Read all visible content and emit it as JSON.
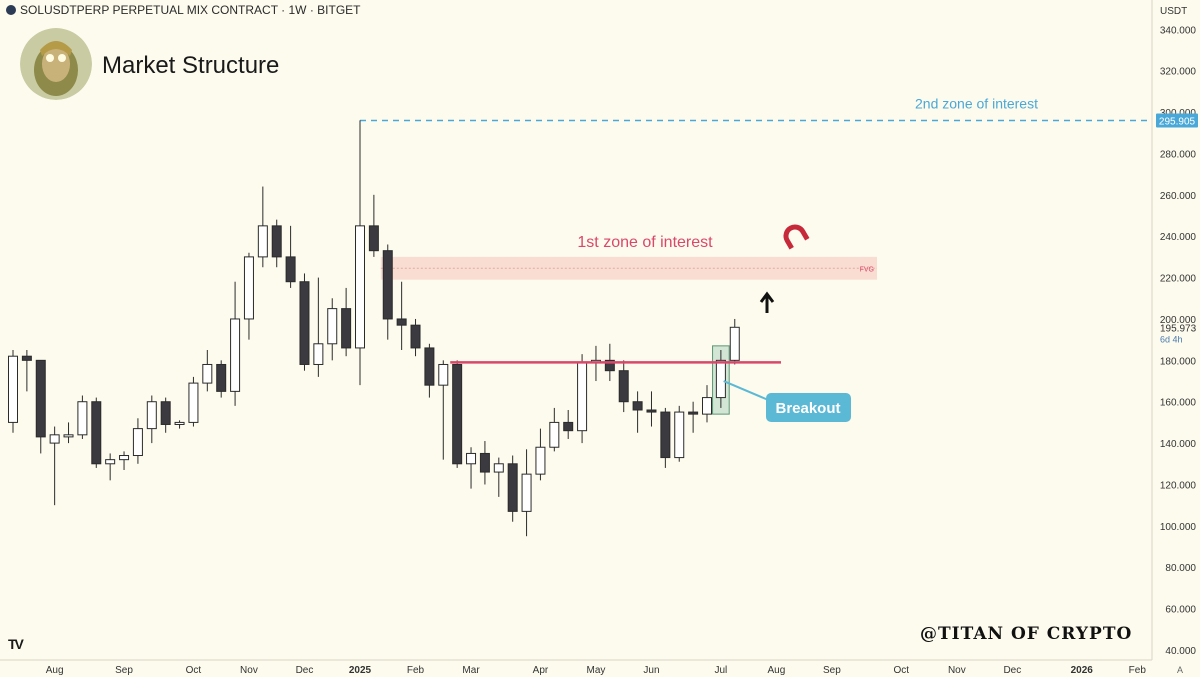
{
  "header": {
    "symbol_line": "SOLUSDTPERP PERPETUAL MIX CONTRACT · 1W · BITGET"
  },
  "title": "Market Structure",
  "watermark": "@TITAN OF CRYPTO",
  "tv_logo": "TV",
  "price_scale": {
    "currency": "USDT",
    "current_price": "195.973",
    "countdown": "6d 4h",
    "level_label": "295.905",
    "footer_label": "A"
  },
  "colors": {
    "background": "#fdfbee",
    "bear": "#3a3a40",
    "bull_fill": "#ffffff",
    "outline": "#2b2b2b",
    "resistance": "#d9486a",
    "zone2": "#4aa8d8",
    "fvg_fill": "#f7d2c8",
    "breakout": "#5bb9d5"
  },
  "chart_data": {
    "type": "candlestick",
    "timeframe": "1W",
    "y_ticks": [
      340,
      320,
      300,
      280,
      260,
      240,
      220,
      200,
      180,
      160,
      140,
      120,
      100,
      80,
      60,
      40
    ],
    "ylim": [
      36,
      345
    ],
    "x_labels": [
      "Aug",
      "Sep",
      "Oct",
      "Nov",
      "Dec",
      "2025",
      "Feb",
      "Mar",
      "Apr",
      "May",
      "Jun",
      "Jul",
      "Aug",
      "Sep",
      "Oct",
      "Nov",
      "Dec",
      "2026",
      "Feb"
    ],
    "x_label_weeks": [
      3,
      8,
      13,
      17,
      21,
      25,
      29,
      33,
      38,
      42,
      46,
      51,
      55,
      59,
      64,
      68,
      72,
      77,
      81
    ],
    "bold_labels": [
      "2025",
      "2026"
    ],
    "candles": [
      {
        "w": 0,
        "o": 150,
        "h": 185,
        "l": 145,
        "c": 182
      },
      {
        "w": 1,
        "o": 182,
        "h": 185,
        "l": 165,
        "c": 180
      },
      {
        "w": 2,
        "o": 180,
        "h": 180,
        "l": 135,
        "c": 143
      },
      {
        "w": 3,
        "o": 140,
        "h": 148,
        "l": 110,
        "c": 144
      },
      {
        "w": 4,
        "o": 143,
        "h": 150,
        "l": 140,
        "c": 144
      },
      {
        "w": 5,
        "o": 144,
        "h": 163,
        "l": 142,
        "c": 160
      },
      {
        "w": 6,
        "o": 160,
        "h": 162,
        "l": 128,
        "c": 130
      },
      {
        "w": 7,
        "o": 130,
        "h": 135,
        "l": 122,
        "c": 132
      },
      {
        "w": 8,
        "o": 132,
        "h": 136,
        "l": 127,
        "c": 134
      },
      {
        "w": 9,
        "o": 134,
        "h": 152,
        "l": 130,
        "c": 147
      },
      {
        "w": 10,
        "o": 147,
        "h": 163,
        "l": 140,
        "c": 160
      },
      {
        "w": 11,
        "o": 160,
        "h": 162,
        "l": 145,
        "c": 149
      },
      {
        "w": 12,
        "o": 149,
        "h": 151,
        "l": 147,
        "c": 150
      },
      {
        "w": 13,
        "o": 150,
        "h": 172,
        "l": 148,
        "c": 169
      },
      {
        "w": 14,
        "o": 169,
        "h": 185,
        "l": 165,
        "c": 178
      },
      {
        "w": 15,
        "o": 178,
        "h": 180,
        "l": 162,
        "c": 165
      },
      {
        "w": 16,
        "o": 165,
        "h": 218,
        "l": 158,
        "c": 200
      },
      {
        "w": 17,
        "o": 200,
        "h": 232,
        "l": 190,
        "c": 230
      },
      {
        "w": 18,
        "o": 230,
        "h": 264,
        "l": 225,
        "c": 245
      },
      {
        "w": 19,
        "o": 245,
        "h": 248,
        "l": 225,
        "c": 230
      },
      {
        "w": 20,
        "o": 230,
        "h": 245,
        "l": 215,
        "c": 218
      },
      {
        "w": 21,
        "o": 218,
        "h": 222,
        "l": 175,
        "c": 178
      },
      {
        "w": 22,
        "o": 178,
        "h": 220,
        "l": 172,
        "c": 188
      },
      {
        "w": 23,
        "o": 188,
        "h": 210,
        "l": 180,
        "c": 205
      },
      {
        "w": 24,
        "o": 205,
        "h": 215,
        "l": 182,
        "c": 186
      },
      {
        "w": 25,
        "o": 186,
        "h": 296,
        "l": 168,
        "c": 245
      },
      {
        "w": 26,
        "o": 245,
        "h": 260,
        "l": 230,
        "c": 233
      },
      {
        "w": 27,
        "o": 233,
        "h": 236,
        "l": 190,
        "c": 200
      },
      {
        "w": 28,
        "o": 200,
        "h": 218,
        "l": 185,
        "c": 197
      },
      {
        "w": 29,
        "o": 197,
        "h": 200,
        "l": 182,
        "c": 186
      },
      {
        "w": 30,
        "o": 186,
        "h": 188,
        "l": 162,
        "c": 168
      },
      {
        "w": 31,
        "o": 168,
        "h": 180,
        "l": 132,
        "c": 178
      },
      {
        "w": 32,
        "o": 178,
        "h": 180,
        "l": 128,
        "c": 130
      },
      {
        "w": 33,
        "o": 130,
        "h": 138,
        "l": 118,
        "c": 135
      },
      {
        "w": 34,
        "o": 135,
        "h": 141,
        "l": 120,
        "c": 126
      },
      {
        "w": 35,
        "o": 126,
        "h": 133,
        "l": 114,
        "c": 130
      },
      {
        "w": 36,
        "o": 130,
        "h": 134,
        "l": 102,
        "c": 107
      },
      {
        "w": 37,
        "o": 107,
        "h": 137,
        "l": 95,
        "c": 125
      },
      {
        "w": 38,
        "o": 125,
        "h": 147,
        "l": 122,
        "c": 138
      },
      {
        "w": 39,
        "o": 138,
        "h": 157,
        "l": 136,
        "c": 150
      },
      {
        "w": 40,
        "o": 150,
        "h": 156,
        "l": 142,
        "c": 146
      },
      {
        "w": 41,
        "o": 146,
        "h": 183,
        "l": 140,
        "c": 179
      },
      {
        "w": 42,
        "o": 179,
        "h": 187,
        "l": 170,
        "c": 180
      },
      {
        "w": 43,
        "o": 180,
        "h": 188,
        "l": 170,
        "c": 175
      },
      {
        "w": 44,
        "o": 175,
        "h": 180,
        "l": 155,
        "c": 160
      },
      {
        "w": 45,
        "o": 160,
        "h": 165,
        "l": 145,
        "c": 156
      },
      {
        "w": 46,
        "o": 156,
        "h": 165,
        "l": 148,
        "c": 155
      },
      {
        "w": 47,
        "o": 155,
        "h": 157,
        "l": 128,
        "c": 133
      },
      {
        "w": 48,
        "o": 133,
        "h": 158,
        "l": 131,
        "c": 155
      },
      {
        "w": 49,
        "o": 155,
        "h": 160,
        "l": 145,
        "c": 154
      },
      {
        "w": 50,
        "o": 154,
        "h": 168,
        "l": 150,
        "c": 162
      },
      {
        "w": 51,
        "o": 162,
        "h": 185,
        "l": 157,
        "c": 180
      },
      {
        "w": 52,
        "o": 180,
        "h": 200,
        "l": 178,
        "c": 195.973
      }
    ],
    "annotations": {
      "second_zone": {
        "price": 295.905,
        "label": "2nd zone of interest"
      },
      "first_zone": {
        "price_low": 219,
        "price_high": 230,
        "label": "1st zone of interest",
        "tag": "FVG"
      },
      "resistance": {
        "price": 179
      },
      "breakout": {
        "label": "Breakout",
        "box_low": 154,
        "box_high": 187
      },
      "magnet_icon": "magnet-icon",
      "arrow_icon": "up-arrow-icon"
    }
  }
}
